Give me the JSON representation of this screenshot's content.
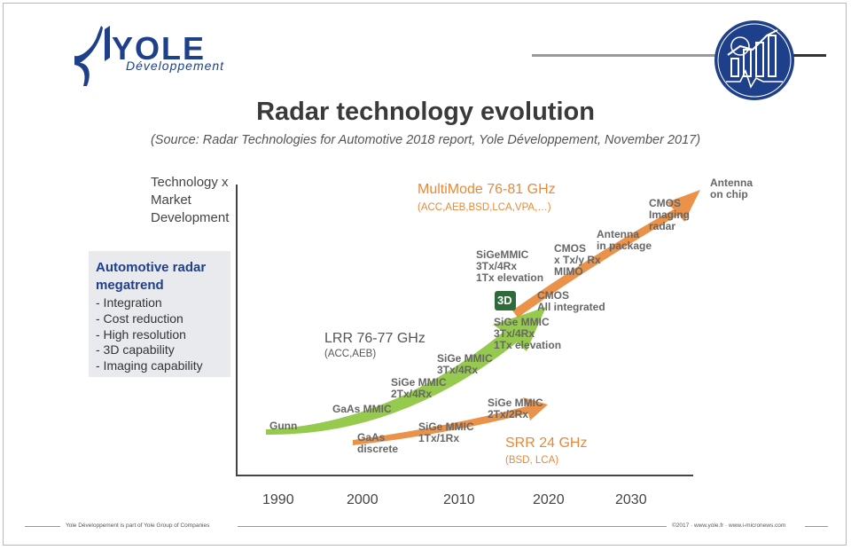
{
  "header": {
    "logo_word": "YOLE",
    "logo_sub": "Développement",
    "title": "Radar technology evolution",
    "subtitle": "(Source: Radar Technologies for Automotive 2018 report, Yole Développement, November 2017)"
  },
  "axis": {
    "ylabel": [
      "Technology x",
      "Market",
      "Development"
    ],
    "ticks": [
      "1990",
      "2000",
      "2010",
      "2020",
      "2030"
    ]
  },
  "megatrend": {
    "title": [
      "Automotive radar",
      "megatrend"
    ],
    "items": [
      "- Integration",
      "- Cost reduction",
      "- High resolution",
      "- 3D capability",
      "- Imaging capability"
    ]
  },
  "tracks": {
    "multimode": {
      "name": "MultiMode 76-81 GHz",
      "apps": "(ACC,AEB,BSD,LCA,VPA,…)",
      "color": "#e8893a"
    },
    "lrr": {
      "name": "LRR 76-77 GHz",
      "apps": "(ACC,AEB)",
      "color": "#8dc63f"
    },
    "srr": {
      "name": "SRR 24 GHz",
      "apps": "(BSD, LCA)",
      "color": "#e8893a"
    }
  },
  "milestones": {
    "gunn": "Gunn",
    "gaas_mmic": "GaAs MMIC",
    "sige_2tx4rx": [
      "SiGe MMIC",
      "2Tx/4Rx"
    ],
    "sige_3tx4rx": [
      "SiGe MMIC",
      "3Tx/4Rx"
    ],
    "sige_3tx4rx_elev": [
      "SiGe MMIC",
      "3Tx/4Rx",
      "1Tx elevation"
    ],
    "cmos_all": [
      "CMOS",
      "All integrated"
    ],
    "sige_mm_elev": [
      "SiGeMMIC",
      "3Tx/4Rx",
      "1Tx elevation"
    ],
    "cmos_mimo": [
      "CMOS",
      "x Tx/y Rx",
      "MIMO"
    ],
    "antenna_pkg": [
      "Antenna",
      "in package"
    ],
    "cmos_imaging": [
      "CMOS",
      "Imaging",
      "radar"
    ],
    "antenna_chip": [
      "Antenna",
      "on chip"
    ],
    "gaas_discrete": [
      "GaAs",
      "discrete"
    ],
    "sige_1tx1rx": [
      "SiGe MMIC",
      "1Tx/1Rx"
    ],
    "sige_2tx2rx": [
      "SiGe MMIC",
      "2Tx/2Rx"
    ],
    "badge_3d": "3D"
  },
  "footer": {
    "left": "Yole Développement is part of Yole Group of Companies",
    "right": "©2017 · www.yole.fr · www.i-micronews.com"
  },
  "colors": {
    "brand": "#1e3f8a",
    "orange": "#e8893a",
    "green": "#8dc63f"
  }
}
